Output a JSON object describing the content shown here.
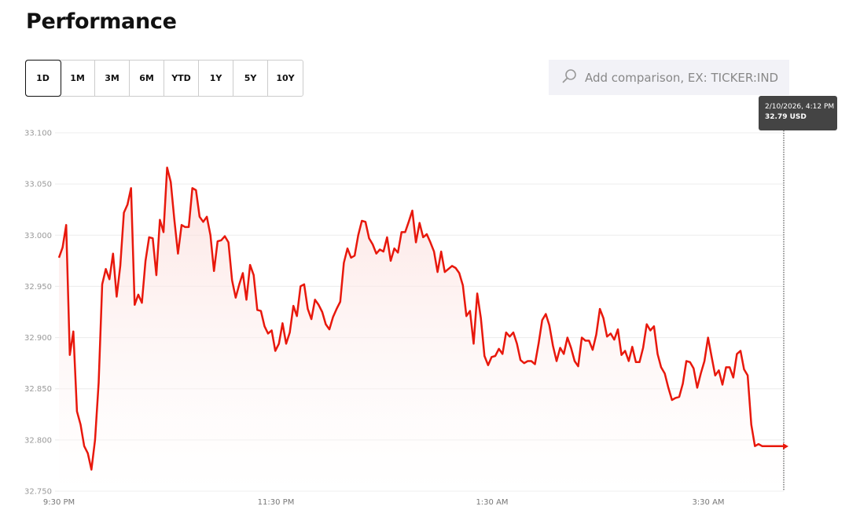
{
  "header": {
    "title": "Performance"
  },
  "ranges": [
    {
      "label": "1D",
      "active": true
    },
    {
      "label": "1M"
    },
    {
      "label": "3M"
    },
    {
      "label": "6M"
    },
    {
      "label": "YTD"
    },
    {
      "label": "1Y"
    },
    {
      "label": "5Y"
    },
    {
      "label": "10Y"
    }
  ],
  "search": {
    "placeholder": "Add comparison, EX: TICKER:IND",
    "icon": "search-icon"
  },
  "tooltip": {
    "datetime": "2/10/2026, 4:12 PM",
    "price": "32.79 USD"
  },
  "colors": {
    "line": "#e8180c",
    "fill": "#fde8e6",
    "grid": "#ececec",
    "tooltip_bg": "#444444"
  },
  "chart_data": {
    "type": "area",
    "x_start": "9:30 PM",
    "x_end": "4:12 AM",
    "xticks": [
      "9:30 PM",
      "11:30 PM",
      "1:30 AM",
      "3:30 AM"
    ],
    "yticks": [
      "32.750",
      "32.800",
      "32.850",
      "32.900",
      "32.950",
      "33.000",
      "33.050",
      "33.100"
    ],
    "ylim": [
      32.75,
      33.1
    ],
    "grid": true,
    "values": [
      32.978,
      32.988,
      33.01,
      32.883,
      32.906,
      32.828,
      32.815,
      32.794,
      32.787,
      32.771,
      32.8,
      32.856,
      32.952,
      32.967,
      32.957,
      32.982,
      32.94,
      32.97,
      33.022,
      33.03,
      33.046,
      32.932,
      32.942,
      32.934,
      32.975,
      32.998,
      32.997,
      32.961,
      33.015,
      33.003,
      33.066,
      33.052,
      33.015,
      32.982,
      33.01,
      33.008,
      33.008,
      33.046,
      33.044,
      33.018,
      33.013,
      33.018,
      33.0,
      32.965,
      32.994,
      32.995,
      32.999,
      32.993,
      32.956,
      32.939,
      32.952,
      32.963,
      32.937,
      32.971,
      32.961,
      32.927,
      32.926,
      32.911,
      32.904,
      32.907,
      32.887,
      32.894,
      32.914,
      32.894,
      32.905,
      32.931,
      32.921,
      32.95,
      32.952,
      32.928,
      32.918,
      32.937,
      32.932,
      32.925,
      32.913,
      32.908,
      32.92,
      32.928,
      32.935,
      32.973,
      32.987,
      32.978,
      32.98,
      33.0,
      33.014,
      33.013,
      32.997,
      32.991,
      32.982,
      32.986,
      32.984,
      32.998,
      32.975,
      32.987,
      32.983,
      33.003,
      33.003,
      33.013,
      33.024,
      32.993,
      33.012,
      32.998,
      33.001,
      32.993,
      32.984,
      32.964,
      32.984,
      32.964,
      32.967,
      32.97,
      32.968,
      32.963,
      32.951,
      32.921,
      32.926,
      32.894,
      32.943,
      32.919,
      32.882,
      32.873,
      32.881,
      32.882,
      32.889,
      32.884,
      32.905,
      32.901,
      32.905,
      32.894,
      32.878,
      32.875,
      32.877,
      32.877,
      32.874,
      32.894,
      32.917,
      32.923,
      32.912,
      32.892,
      32.877,
      32.89,
      32.884,
      32.9,
      32.89,
      32.877,
      32.872,
      32.9,
      32.897,
      32.897,
      32.888,
      32.903,
      32.928,
      32.919,
      32.901,
      32.904,
      32.898,
      32.908,
      32.883,
      32.887,
      32.877,
      32.891,
      32.876,
      32.876,
      32.89,
      32.913,
      32.907,
      32.911,
      32.884,
      32.871,
      32.865,
      32.851,
      32.839,
      32.841,
      32.842,
      32.855,
      32.877,
      32.876,
      32.87,
      32.851,
      32.865,
      32.877,
      32.9,
      32.881,
      32.863,
      32.868,
      32.854,
      32.871,
      32.871,
      32.861,
      32.884,
      32.887,
      32.869,
      32.863,
      32.815,
      32.794,
      32.796,
      32.794,
      32.794,
      32.794,
      32.794,
      32.794,
      32.794,
      32.794
    ]
  }
}
